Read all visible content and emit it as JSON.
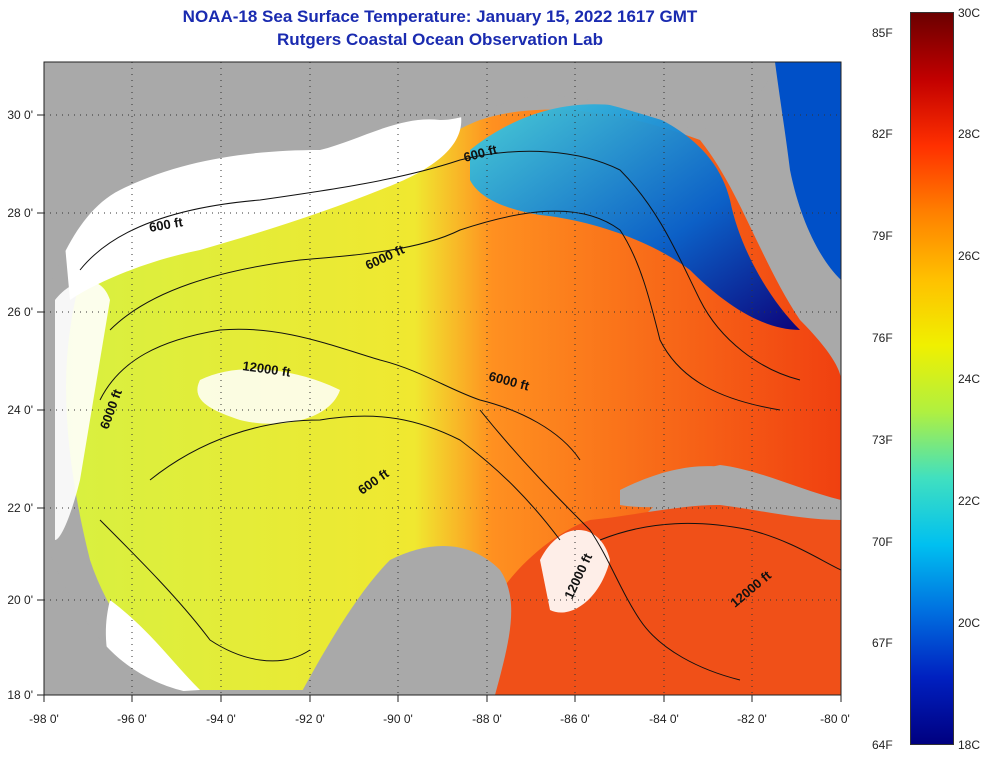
{
  "title": {
    "line1": "NOAA-18 Sea Surface Temperature:  January 15, 2022 1617 GMT",
    "line2": "Rutgers Coastal Ocean Observation Lab"
  },
  "colors": {
    "title": "#1a2bb0",
    "land": "#a9a9a9",
    "cloud": "#ffffff",
    "contour": "#111111"
  },
  "axes": {
    "x_ticks": [
      "-98 0'",
      "-96 0'",
      "-94 0'",
      "-92 0'",
      "-90 0'",
      "-88 0'",
      "-86 0'",
      "-84 0'",
      "-82 0'",
      "-80 0'"
    ],
    "y_ticks": [
      "30 0'",
      "28 0'",
      "26 0'",
      "24 0'",
      "22 0'",
      "20 0'",
      "18 0'"
    ]
  },
  "contour_labels": [
    {
      "text": "600 ft"
    },
    {
      "text": "600 ft"
    },
    {
      "text": "6000 ft"
    },
    {
      "text": "12000 ft"
    },
    {
      "text": "6000 ft"
    },
    {
      "text": "6000 ft"
    },
    {
      "text": "600 ft"
    },
    {
      "text": "12000 ft"
    },
    {
      "text": "12000 ft"
    }
  ],
  "colorbar": {
    "fahrenheit_labels": [
      "85F",
      "82F",
      "79F",
      "76F",
      "73F",
      "70F",
      "67F",
      "64F"
    ],
    "celsius_labels": [
      "30C",
      "28C",
      "26C",
      "24C",
      "22C",
      "20C",
      "18C"
    ],
    "gradient": [
      "#6b0000",
      "#c20000",
      "#ff3000",
      "#ff8000",
      "#ffc000",
      "#f0f000",
      "#b0f040",
      "#40e0c0",
      "#00c0f0",
      "#0070e0",
      "#0020c0",
      "#000080"
    ]
  }
}
